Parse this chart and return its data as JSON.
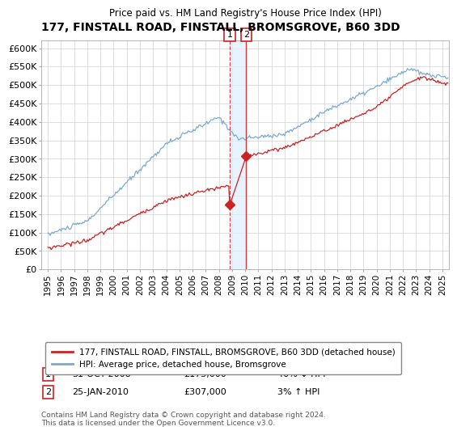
{
  "title": "177, FINSTALL ROAD, FINSTALL, BROMSGROVE, B60 3DD",
  "subtitle": "Price paid vs. HM Land Registry's House Price Index (HPI)",
  "legend_line1": "177, FINSTALL ROAD, FINSTALL, BROMSGROVE, B60 3DD (detached house)",
  "legend_line2": "HPI: Average price, detached house, Bromsgrove",
  "annotation1_date": "31-OCT-2008",
  "annotation1_price": "£175,000",
  "annotation1_hpi": "40% ↓ HPI",
  "annotation2_date": "25-JAN-2010",
  "annotation2_price": "£307,000",
  "annotation2_hpi": "3% ↑ HPI",
  "footer": "Contains HM Land Registry data © Crown copyright and database right 2024.\nThis data is licensed under the Open Government Licence v3.0.",
  "hpi_color": "#7aaad4",
  "price_color": "#cc2222",
  "annotation_color": "#cc2222",
  "shade_color": "#ddeeff",
  "ylim": [
    0,
    620000
  ],
  "yticks": [
    0,
    50000,
    100000,
    150000,
    200000,
    250000,
    300000,
    350000,
    400000,
    450000,
    500000,
    550000,
    600000
  ],
  "ytick_labels": [
    "£0",
    "£50K",
    "£100K",
    "£150K",
    "£200K",
    "£250K",
    "£300K",
    "£350K",
    "£400K",
    "£450K",
    "£500K",
    "£550K",
    "£600K"
  ],
  "sale1_x": 2008.833,
  "sale1_y": 175000,
  "sale2_x": 2010.07,
  "sale2_y": 307000,
  "xmin": 1995,
  "xmax": 2025.5
}
